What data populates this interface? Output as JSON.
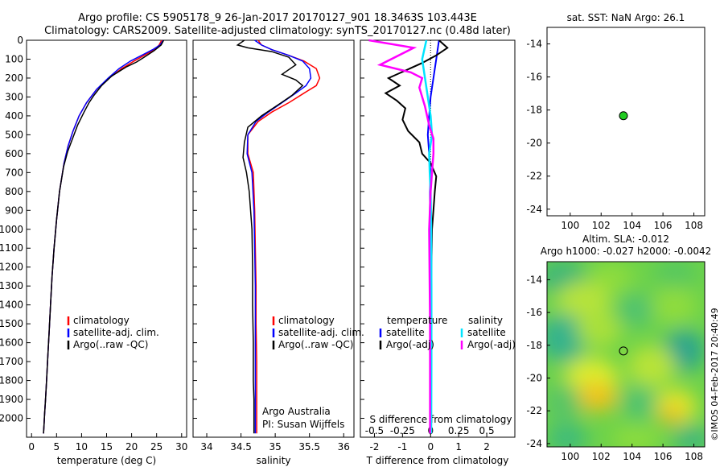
{
  "header": {
    "line1": "Argo profile: CS 5905178_9 26-Jan-2017 20170127_901 18.3463S 103.443E",
    "line2": "Climatology: CARS2009. Satellite-adjusted climatology: synTS_20170127.nc (0.48d later)"
  },
  "footer_stamp": "©IMOS 04-Feb-2017 20:40:49",
  "colors": {
    "climatology": "#ff0000",
    "satellite": "#0000ff",
    "argo": "#000000",
    "salinity_satellite": "#00e5ff",
    "salinity_argo": "#ff00ff",
    "float_marker": "#22cc22"
  },
  "chart_data": [
    {
      "type": "line",
      "panel": "temperature",
      "xlabel": "temperature (deg C)",
      "ylabel": "",
      "xlim": [
        -1,
        31
      ],
      "ylim": [
        2100,
        0
      ],
      "x_ticks": [
        "0",
        "5",
        "10",
        "15",
        "20",
        "25",
        "30"
      ],
      "y_ticks": [
        "0",
        "100",
        "200",
        "300",
        "400",
        "500",
        "600",
        "700",
        "800",
        "900",
        "1000",
        "1100",
        "1200",
        "1300",
        "1400",
        "1500",
        "1600",
        "1700",
        "1800",
        "1900",
        "2000"
      ],
      "legend": [
        "climatology",
        "satellite-adj. clim.",
        "Argo(..raw -QC)"
      ],
      "series": [
        {
          "name": "climatology",
          "x": [
            26.0,
            25.5,
            24.5,
            22.5,
            20.5,
            18.0,
            15.5,
            13.0,
            11.0,
            9.5,
            8.3,
            7.3,
            6.5,
            5.6,
            5.0,
            4.5,
            4.1,
            3.8,
            3.5,
            3.2,
            3.0,
            2.8,
            2.6,
            2.5,
            2.4
          ],
          "y": [
            0,
            25,
            50,
            80,
            110,
            150,
            200,
            260,
            330,
            400,
            480,
            560,
            650,
            800,
            950,
            1100,
            1250,
            1400,
            1550,
            1700,
            1800,
            1900,
            1980,
            2030,
            2080
          ]
        },
        {
          "name": "satellite-adj. clim.",
          "x": [
            26.3,
            25.7,
            24.2,
            22.0,
            19.8,
            17.5,
            15.3,
            13.0,
            11.0,
            9.5,
            8.3,
            7.3,
            6.5,
            5.6,
            5.0,
            4.5,
            4.1,
            3.8,
            3.5,
            3.2,
            3.0,
            2.8,
            2.6,
            2.5,
            2.4
          ],
          "y": [
            0,
            25,
            50,
            80,
            110,
            150,
            200,
            260,
            330,
            400,
            480,
            560,
            650,
            800,
            950,
            1100,
            1250,
            1400,
            1550,
            1700,
            1800,
            1900,
            1980,
            2030,
            2080
          ]
        },
        {
          "name": "Argo(..raw -QC)",
          "x": [
            26.4,
            25.9,
            24.5,
            22.5,
            21.0,
            19.0,
            17.5,
            16.0,
            15.0,
            14.0,
            12.5,
            11.5,
            10.5,
            9.2,
            8.2,
            7.2,
            6.4,
            5.6,
            5.0,
            4.5,
            4.1,
            3.8,
            3.5,
            3.2,
            3.0,
            2.8,
            2.6,
            2.5,
            2.4
          ],
          "y": [
            0,
            25,
            55,
            90,
            115,
            140,
            165,
            190,
            215,
            240,
            290,
            330,
            380,
            450,
            520,
            590,
            670,
            800,
            950,
            1100,
            1250,
            1400,
            1550,
            1700,
            1800,
            1900,
            1980,
            2030,
            2080
          ]
        }
      ]
    },
    {
      "type": "line",
      "panel": "salinity",
      "xlabel": "salinity",
      "ylabel": "",
      "xlim": [
        33.8,
        36.15
      ],
      "ylim": [
        2100,
        0
      ],
      "x_ticks": [
        "34",
        "34.5",
        "35",
        "35.5",
        "36"
      ],
      "legend": [
        "climatology",
        "satellite-adj. clim.",
        "Argo(..raw -QC)"
      ],
      "annotation": [
        "Argo Australia",
        "PI: Susan Wijffels"
      ],
      "series": [
        {
          "name": "climatology",
          "x": [
            34.75,
            34.8,
            34.95,
            35.2,
            35.42,
            35.6,
            35.65,
            35.6,
            35.42,
            35.2,
            34.95,
            34.75,
            34.6,
            34.6,
            34.68,
            34.7,
            34.71,
            34.72,
            34.72,
            34.73,
            34.73,
            34.73,
            34.73
          ],
          "y": [
            0,
            25,
            50,
            80,
            110,
            150,
            200,
            240,
            280,
            330,
            380,
            430,
            500,
            600,
            700,
            900,
            1100,
            1300,
            1500,
            1700,
            1900,
            2000,
            2080
          ]
        },
        {
          "name": "satellite-adj. clim.",
          "x": [
            34.7,
            34.8,
            34.95,
            35.2,
            35.4,
            35.5,
            35.52,
            35.45,
            35.3,
            35.1,
            34.9,
            34.72,
            34.6,
            34.59,
            34.66,
            34.69,
            34.7,
            34.71,
            34.71,
            34.71,
            34.71,
            34.71,
            34.71
          ],
          "y": [
            0,
            25,
            50,
            80,
            110,
            150,
            200,
            240,
            280,
            330,
            380,
            430,
            500,
            600,
            700,
            900,
            1100,
            1300,
            1500,
            1700,
            1900,
            2000,
            2080
          ]
        },
        {
          "name": "Argo(..raw -QC)",
          "x": [
            34.55,
            34.45,
            34.6,
            34.95,
            35.2,
            35.3,
            35.1,
            35.3,
            35.4,
            35.25,
            35.05,
            34.8,
            34.6,
            34.55,
            34.53,
            34.58,
            34.62,
            34.64,
            34.66,
            34.67,
            34.67,
            34.68,
            34.68,
            34.69,
            34.69,
            34.69
          ],
          "y": [
            0,
            25,
            40,
            60,
            90,
            130,
            180,
            210,
            240,
            290,
            340,
            400,
            460,
            540,
            620,
            700,
            800,
            900,
            1000,
            1200,
            1400,
            1600,
            1800,
            1900,
            2000,
            2080
          ]
        }
      ]
    },
    {
      "type": "line",
      "panel": "difference",
      "xlabel": "T difference from climatology",
      "xlabel_top": "S difference from climatology",
      "ylabel": "",
      "xlim": [
        -2.5,
        3.0
      ],
      "ylim": [
        2100,
        0
      ],
      "x_ticks": [
        "-2",
        "-1",
        "0",
        "1",
        "2"
      ],
      "x_ticks_s": [
        "-0.5",
        "-0.25",
        "0",
        "0.25",
        "0.5"
      ],
      "legend_titles": [
        "temperature",
        "salinity"
      ],
      "legend": [
        "satellite",
        "Argo(-adj)",
        "satellite",
        "Argo(-adj)"
      ],
      "series": [
        {
          "name": "temperature satellite",
          "x": [
            0.3,
            0.2,
            0.1,
            0.0,
            -0.05,
            -0.1,
            -0.05,
            0.0,
            -0.02,
            -0.03,
            -0.02,
            -0.01,
            0.0,
            0.0
          ],
          "y": [
            0,
            100,
            200,
            300,
            400,
            500,
            600,
            700,
            800,
            1000,
            1200,
            1500,
            1800,
            2080
          ]
        },
        {
          "name": "temperature Argo(-adj)",
          "x": [
            0.3,
            0.6,
            0.2,
            -0.3,
            -0.9,
            -1.5,
            -1.1,
            -1.6,
            -1.2,
            -0.9,
            -1.0,
            -0.8,
            -0.4,
            -0.3,
            0.0,
            0.2,
            0.15,
            0.1,
            0.05,
            0.03,
            0.02,
            0.01,
            0.0
          ],
          "y": [
            0,
            40,
            80,
            120,
            160,
            200,
            240,
            280,
            320,
            360,
            420,
            480,
            540,
            600,
            650,
            720,
            800,
            900,
            1000,
            1200,
            1500,
            1800,
            2080
          ]
        },
        {
          "name": "salinity satellite",
          "x": [
            -0.15,
            -0.3,
            -0.2,
            -0.1,
            0.0,
            0.05,
            -0.05,
            -0.03,
            0.0,
            0.02,
            0.03,
            0.03,
            0.02
          ],
          "y": [
            0,
            100,
            200,
            300,
            400,
            500,
            600,
            700,
            800,
            1000,
            1300,
            1700,
            2080
          ]
        },
        {
          "name": "salinity Argo(-adj)",
          "x": [
            -2.2,
            -0.6,
            -1.8,
            -0.7,
            -0.3,
            -0.4,
            -0.2,
            -0.05,
            0.1,
            0.1,
            0.05,
            0.0,
            -0.05,
            -0.02,
            -0.02
          ],
          "y": [
            0,
            40,
            130,
            170,
            200,
            250,
            350,
            450,
            520,
            600,
            700,
            800,
            1000,
            1500,
            2080
          ]
        }
      ]
    },
    {
      "type": "scatter",
      "panel": "sst_map",
      "title": "sat. SST: NaN Argo: 26.1",
      "xlim": [
        98.5,
        108.7
      ],
      "ylim": [
        -24.4,
        -13
      ],
      "x_ticks": [
        "100",
        "102",
        "104",
        "106",
        "108"
      ],
      "y_ticks": [
        "-14",
        "-16",
        "-18",
        "-20",
        "-22",
        "-24"
      ],
      "points": [
        {
          "x": 103.443,
          "y": -18.3463
        }
      ]
    },
    {
      "type": "heatmap",
      "panel": "sla_map",
      "title_line1": "Altim. SLA: -0.012",
      "title_line2": "Argo h1000: -0.027 h2000: -0.0042",
      "xlim": [
        98.5,
        108.7
      ],
      "ylim": [
        -24.2,
        -12.9
      ],
      "x_ticks": [
        "100",
        "102",
        "104",
        "106",
        "108"
      ],
      "y_ticks": [
        "-14",
        "-16",
        "-18",
        "-20",
        "-22",
        "-24"
      ],
      "points": [
        {
          "x": 103.443,
          "y": -18.3463
        }
      ]
    }
  ]
}
